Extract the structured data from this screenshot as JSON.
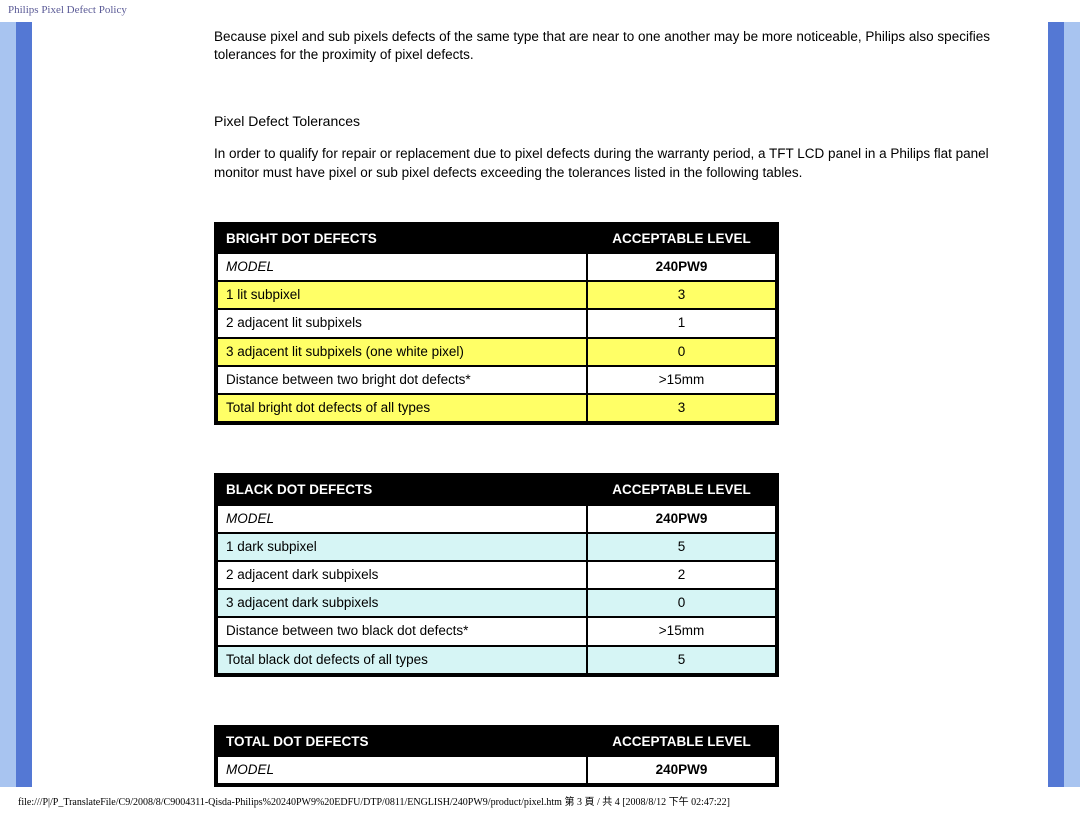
{
  "page_title": "Philips Pixel Defect Policy",
  "intro_para": "Because pixel and sub pixels defects of the same type that are near to one another may be more noticeable, Philips also specifies tolerances for the proximity of pixel defects.",
  "section_heading": "Pixel Defect Tolerances",
  "section_para": "In order to qualify for repair or replacement due to pixel defects during the warranty period, a TFT LCD panel in a Philips flat panel monitor must have pixel or sub pixel defects exceeding the tolerances listed in the following tables.",
  "tables": {
    "bright": {
      "header_left": "BRIGHT DOT DEFECTS",
      "header_right": "ACCEPTABLE LEVEL",
      "model_label": "MODEL",
      "model_value": "240PW9",
      "alt_style": "yellow",
      "rows": [
        {
          "label": "1 lit subpixel",
          "value": "3"
        },
        {
          "label": "2 adjacent lit subpixels",
          "value": "1"
        },
        {
          "label": "3 adjacent lit subpixels (one white pixel)",
          "value": "0"
        },
        {
          "label": "Distance between two bright dot defects*",
          "value": ">15mm"
        },
        {
          "label": "Total bright dot defects of all types",
          "value": "3"
        }
      ]
    },
    "black": {
      "header_left": "BLACK DOT DEFECTS",
      "header_right": "ACCEPTABLE LEVEL",
      "model_label": "MODEL",
      "model_value": "240PW9",
      "alt_style": "cyan",
      "rows": [
        {
          "label": "1 dark subpixel",
          "value": "5"
        },
        {
          "label": "2 adjacent dark subpixels",
          "value": "2"
        },
        {
          "label": "3 adjacent dark subpixels",
          "value": "0"
        },
        {
          "label": "Distance between two black dot defects*",
          "value": ">15mm"
        },
        {
          "label": "Total black dot defects of all types",
          "value": "5"
        }
      ]
    },
    "total": {
      "header_left": "TOTAL DOT DEFECTS",
      "header_right": "ACCEPTABLE LEVEL",
      "model_label": "MODEL",
      "model_value": "240PW9",
      "alt_style": "yellow",
      "rows": []
    }
  },
  "footer_path": "file:///P|/P_TranslateFile/C9/2008/8/C9004311-Qisda-Philips%20240PW9%20EDFU/DTP/0811/ENGLISH/240PW9/product/pixel.htm 第 3 頁 / 共 4 [2008/8/12 下午 02:47:22]",
  "colors": {
    "stripe_outer": "#a8c4f0",
    "stripe_inner": "#5478d4",
    "alt_yellow": "#ffff66",
    "alt_cyan": "#d6f5f5",
    "header_bg": "#000000",
    "header_fg": "#ffffff"
  }
}
